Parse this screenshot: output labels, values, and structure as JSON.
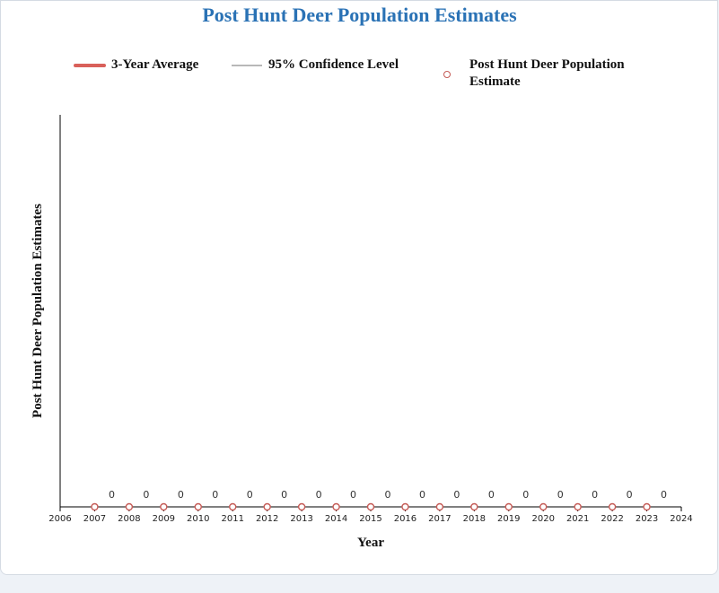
{
  "colors": {
    "title": "#2a72b5",
    "average_line": "#d9605a",
    "confidence_line": "#b8b8b8",
    "marker_stroke": "#c55a55",
    "axis": "#000000"
  },
  "legend": {
    "average": "3-Year Average",
    "confidence": "95% Confidence Level",
    "estimate_line1": "Post Hunt Deer Population",
    "estimate_line2": "Estimate"
  },
  "chart_data": {
    "type": "scatter",
    "title": "Post Hunt Deer Population Estimates",
    "xlabel": "Year",
    "ylabel": "Post Hunt Deer Population Estimates",
    "xlim": [
      2006,
      2024
    ],
    "x_ticks": [
      2006,
      2007,
      2008,
      2009,
      2010,
      2011,
      2012,
      2013,
      2014,
      2015,
      2016,
      2017,
      2018,
      2019,
      2020,
      2021,
      2022,
      2023,
      2024
    ],
    "grid": false,
    "legend_position": "top",
    "series": [
      {
        "name": "Post Hunt Deer Population Estimate",
        "x": [
          2007,
          2008,
          2009,
          2010,
          2011,
          2012,
          2013,
          2014,
          2015,
          2016,
          2017,
          2018,
          2019,
          2020,
          2021,
          2022,
          2023
        ],
        "y": [
          0,
          0,
          0,
          0,
          0,
          0,
          0,
          0,
          0,
          0,
          0,
          0,
          0,
          0,
          0,
          0,
          0
        ],
        "data_labels": [
          "0",
          "0",
          "0",
          "0",
          "0",
          "0",
          "0",
          "0",
          "0",
          "0",
          "0",
          "0",
          "0",
          "0",
          "0",
          "0",
          "0"
        ]
      },
      {
        "name": "3-Year Average",
        "x": [],
        "y": []
      },
      {
        "name": "95% Confidence Level",
        "x": [],
        "y": []
      }
    ]
  }
}
